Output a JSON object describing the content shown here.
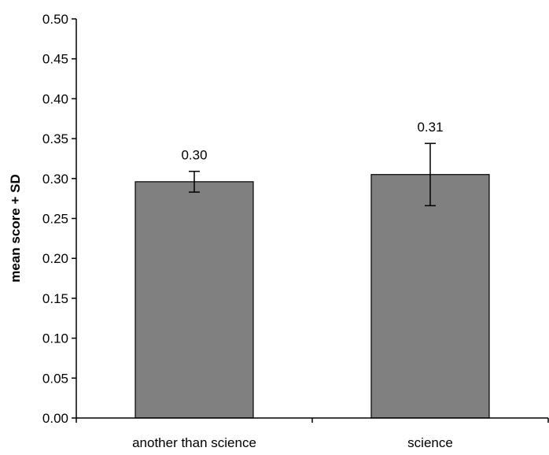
{
  "chart_data": {
    "type": "bar",
    "title": "",
    "xlabel": "",
    "ylabel": "mean score + SD",
    "categories": [
      "another than science",
      "science"
    ],
    "values": [
      0.296,
      0.305
    ],
    "errors": [
      0.013,
      0.039
    ],
    "data_labels": [
      "0.30",
      "0.31"
    ],
    "ylim": [
      0,
      0.5
    ],
    "yticks": [
      0.0,
      0.05,
      0.1,
      0.15,
      0.2,
      0.25,
      0.3,
      0.35,
      0.4,
      0.45,
      0.5
    ],
    "ytick_labels": [
      "0.00",
      "0.05",
      "0.10",
      "0.15",
      "0.20",
      "0.25",
      "0.30",
      "0.35",
      "0.40",
      "0.45",
      "0.50"
    ],
    "grid": false,
    "bar_color": "#808080"
  }
}
